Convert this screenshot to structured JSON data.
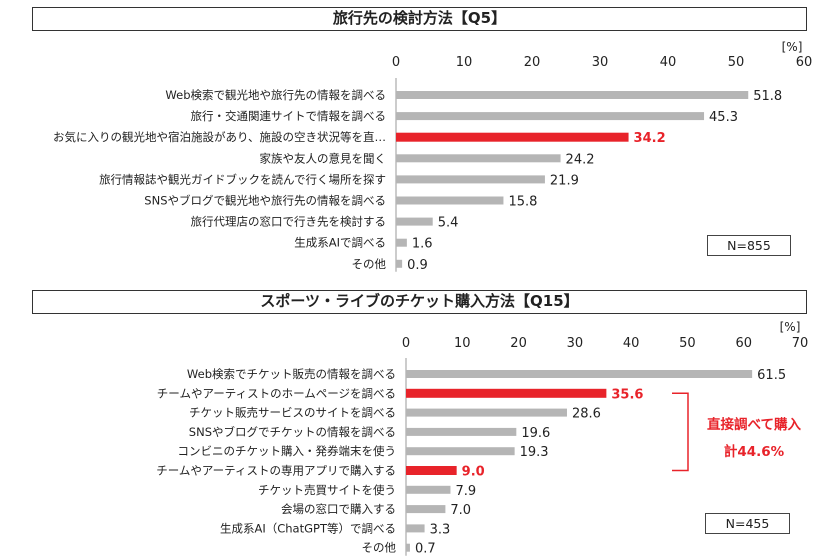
{
  "colors": {
    "highlight": "#e8232a",
    "bar": "#b5b5b5",
    "text": "#222222"
  },
  "chart_data": [
    {
      "type": "bar",
      "orientation": "horizontal",
      "title": "旅行先の検討方法【Q5】",
      "unit_label": "[%]",
      "xlim": [
        0,
        60
      ],
      "ticks": [
        0,
        10,
        20,
        30,
        40,
        50,
        60
      ],
      "grid": false,
      "categories": [
        "Web検索で観光地や旅行先の情報を調べる",
        "旅行・交通関連サイトで情報を調べる",
        "お気に入りの観光地や宿泊施設があり、施設の空き状況等を直…",
        "家族や友人の意見を聞く",
        "旅行情報誌や観光ガイドブックを読んで行く場所を探す",
        "SNSやブログで観光地や旅行先の情報を調べる",
        "旅行代理店の窓口で行き先を検討する",
        "生成系AIで調べる",
        "その他"
      ],
      "values": [
        51.8,
        45.3,
        34.2,
        24.2,
        21.9,
        15.8,
        5.4,
        1.6,
        0.9
      ],
      "value_labels": [
        "51.8",
        "45.3",
        "34.2",
        "24.2",
        "21.9",
        "15.8",
        "5.4",
        "1.6",
        "0.9"
      ],
      "highlighted": [
        2
      ],
      "sample_size": "N=855"
    },
    {
      "type": "bar",
      "orientation": "horizontal",
      "title": "スポーツ・ライブのチケット購入方法【Q15】",
      "unit_label": "[%]",
      "xlim": [
        0,
        70
      ],
      "ticks": [
        0,
        10,
        20,
        30,
        40,
        50,
        60,
        70
      ],
      "grid": false,
      "categories": [
        "Web検索でチケット販売の情報を調べる",
        "チームやアーティストのホームページを調べる",
        "チケット販売サービスのサイトを調べる",
        "SNSやブログでチケットの情報を調べる",
        "コンビニのチケット購入・発券端末を使う",
        "チームやアーティストの専用アプリで購入する",
        "チケット売買サイトを使う",
        "会場の窓口で購入する",
        "生成系AI（ChatGPT等）で調べる",
        "その他"
      ],
      "values": [
        61.5,
        35.6,
        28.6,
        19.6,
        19.3,
        9.0,
        7.9,
        7.0,
        3.3,
        0.7
      ],
      "value_labels": [
        "61.5",
        "35.6",
        "28.6",
        "19.6",
        "19.3",
        "9.0",
        "7.9",
        "7.0",
        "3.3",
        "0.7"
      ],
      "highlighted": [
        1,
        5
      ],
      "sample_size": "N=455",
      "annotation": {
        "line1": "直接調べて購入",
        "line2": "計44.6%"
      }
    }
  ]
}
